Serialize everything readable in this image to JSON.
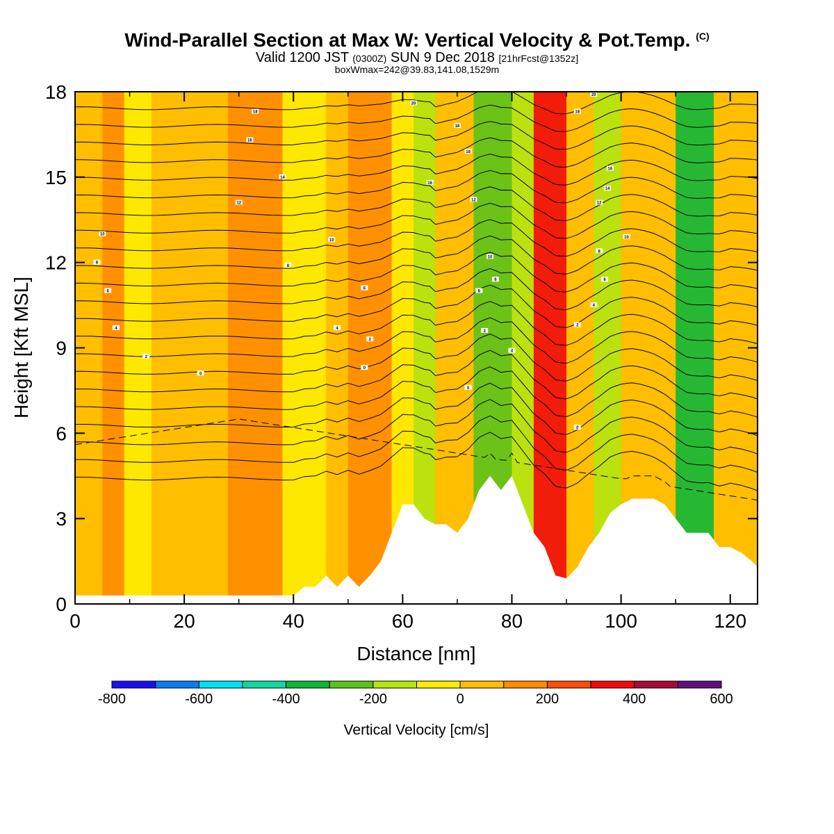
{
  "title": {
    "main": "Wind-Parallel Section at Max W: Vertical Velocity & Pot.Temp.",
    "main_suffix": "(C)",
    "valid_prefix": "Valid 1200 JST",
    "valid_zulu": "(0300Z)",
    "valid_date": "SUN 9 Dec 2018",
    "valid_fcst": "[21hrFcst@1352z]",
    "box": "boxWmax=242@39.83,141.08,1529m"
  },
  "chart_data": {
    "type": "heatmap",
    "xlabel": "Distance [nm]",
    "ylabel": "Height [Kft MSL]",
    "xlim": [
      0,
      125
    ],
    "ylim": [
      0,
      18
    ],
    "xticks": [
      0,
      20,
      40,
      60,
      80,
      100,
      120
    ],
    "yticks": [
      0,
      3,
      6,
      9,
      12,
      15,
      18
    ],
    "grid": false,
    "colorbar": {
      "title": "Vertical Velocity [cm/s]",
      "levels": [
        -800,
        -700,
        -600,
        -500,
        -400,
        -300,
        -200,
        -100,
        0,
        100,
        200,
        300,
        400,
        500,
        600
      ],
      "tick_labels": [
        "-800",
        "-600",
        "-400",
        "-200",
        "0",
        "200",
        "400",
        "600"
      ],
      "tick_values": [
        -800,
        -600,
        -400,
        -200,
        0,
        200,
        400,
        600
      ],
      "colors": [
        "#1a0ff2",
        "#0a7cf2",
        "#00e2f7",
        "#11d7a0",
        "#0fb739",
        "#5cc21a",
        "#b4e60f",
        "#ffec00",
        "#ffbe00",
        "#ff8c00",
        "#ff4b0c",
        "#f00a0a",
        "#a80a3c",
        "#5e117d"
      ]
    },
    "vertical_velocity_bands": [
      {
        "x": [
          0,
          5
        ],
        "value": 50
      },
      {
        "x": [
          5,
          9
        ],
        "value": 150
      },
      {
        "x": [
          9,
          14
        ],
        "value": -50
      },
      {
        "x": [
          14,
          19
        ],
        "value": 50
      },
      {
        "x": [
          19,
          28
        ],
        "value": 80
      },
      {
        "x": [
          28,
          38
        ],
        "value": 120
      },
      {
        "x": [
          38,
          46
        ],
        "value": -30
      },
      {
        "x": [
          46,
          50
        ],
        "value": 60
      },
      {
        "x": [
          50,
          58
        ],
        "value": 100
      },
      {
        "x": [
          58,
          62
        ],
        "value": -80
      },
      {
        "x": [
          62,
          66
        ],
        "value": -150
      },
      {
        "x": [
          66,
          73
        ],
        "value": 40
      },
      {
        "x": [
          73,
          80
        ],
        "value": -250
      },
      {
        "x": [
          80,
          84
        ],
        "value": -150
      },
      {
        "x": [
          84,
          90
        ],
        "value": 320
      },
      {
        "x": [
          90,
          95
        ],
        "value": 60
      },
      {
        "x": [
          95,
          100
        ],
        "value": -180
      },
      {
        "x": [
          100,
          110
        ],
        "value": 40
      },
      {
        "x": [
          110,
          117
        ],
        "value": -320
      },
      {
        "x": [
          117,
          125
        ],
        "value": 60
      }
    ],
    "terrain": {
      "x": [
        0,
        40,
        42,
        44,
        46,
        48,
        50,
        52,
        54,
        56,
        58,
        60,
        62,
        64,
        66,
        68,
        70,
        72,
        74,
        76,
        78,
        80,
        82,
        84,
        86,
        88,
        90,
        92,
        94,
        96,
        98,
        100,
        102,
        104,
        106,
        108,
        110,
        112,
        114,
        116,
        118,
        120,
        122,
        124,
        125
      ],
      "y": [
        0.3,
        0.3,
        0.6,
        0.6,
        1.0,
        0.6,
        1.0,
        0.6,
        1.0,
        1.5,
        2.5,
        3.5,
        3.5,
        3.0,
        2.8,
        2.8,
        2.5,
        3.0,
        4.0,
        4.5,
        4.0,
        4.5,
        3.5,
        2.5,
        2.0,
        1.0,
        0.9,
        1.3,
        2.0,
        2.5,
        3.2,
        3.5,
        3.7,
        3.7,
        3.7,
        3.5,
        3.0,
        2.5,
        2.5,
        2.5,
        2.0,
        2.0,
        1.8,
        1.5,
        1.3
      ]
    },
    "theta_contours": {
      "levels": [
        0,
        2,
        4,
        6,
        8,
        10,
        12,
        14,
        16,
        18,
        20
      ],
      "labels": [
        {
          "text": "10",
          "x": 5,
          "y": 13.0
        },
        {
          "text": "8",
          "x": 4,
          "y": 12.0
        },
        {
          "text": "6",
          "x": 6,
          "y": 11.0
        },
        {
          "text": "4",
          "x": 7.5,
          "y": 9.7
        },
        {
          "text": "2",
          "x": 13,
          "y": 8.7
        },
        {
          "text": "0",
          "x": 23,
          "y": 8.1
        },
        {
          "text": "18",
          "x": 33,
          "y": 17.3
        },
        {
          "text": "16",
          "x": 32,
          "y": 16.3
        },
        {
          "text": "14",
          "x": 38,
          "y": 15.0
        },
        {
          "text": "12",
          "x": 30,
          "y": 14.1
        },
        {
          "text": "8",
          "x": 39,
          "y": 11.9
        },
        {
          "text": "10",
          "x": 47,
          "y": 12.8
        },
        {
          "text": "6",
          "x": 53,
          "y": 11.1
        },
        {
          "text": "4",
          "x": 48,
          "y": 9.7
        },
        {
          "text": "2",
          "x": 54,
          "y": 9.3
        },
        {
          "text": "0",
          "x": 53,
          "y": 8.3
        },
        {
          "text": "20",
          "x": 62,
          "y": 17.6
        },
        {
          "text": "16",
          "x": 65,
          "y": 14.8
        },
        {
          "text": "18",
          "x": 70,
          "y": 16.8
        },
        {
          "text": "18",
          "x": 72,
          "y": 15.9
        },
        {
          "text": "12",
          "x": 73,
          "y": 14.2
        },
        {
          "text": "10",
          "x": 76,
          "y": 12.2
        },
        {
          "text": "8",
          "x": 74,
          "y": 11.0
        },
        {
          "text": "6",
          "x": 77,
          "y": 11.4
        },
        {
          "text": "2",
          "x": 75,
          "y": 9.6
        },
        {
          "text": "0",
          "x": 72,
          "y": 7.6
        },
        {
          "text": "4",
          "x": 80,
          "y": 8.9
        },
        {
          "text": "20",
          "x": 95,
          "y": 17.9
        },
        {
          "text": "18",
          "x": 92,
          "y": 17.3
        },
        {
          "text": "16",
          "x": 98,
          "y": 15.3
        },
        {
          "text": "14",
          "x": 97.5,
          "y": 14.6
        },
        {
          "text": "12",
          "x": 96,
          "y": 14.1
        },
        {
          "text": "10",
          "x": 101,
          "y": 12.9
        },
        {
          "text": "8",
          "x": 96,
          "y": 12.4
        },
        {
          "text": "6",
          "x": 97,
          "y": 11.4
        },
        {
          "text": "4",
          "x": 95,
          "y": 10.5
        },
        {
          "text": "2",
          "x": 92,
          "y": 9.8
        },
        {
          "text": "0",
          "x": 92,
          "y": 6.2
        }
      ]
    },
    "dashed_contour_label": "negative"
  }
}
